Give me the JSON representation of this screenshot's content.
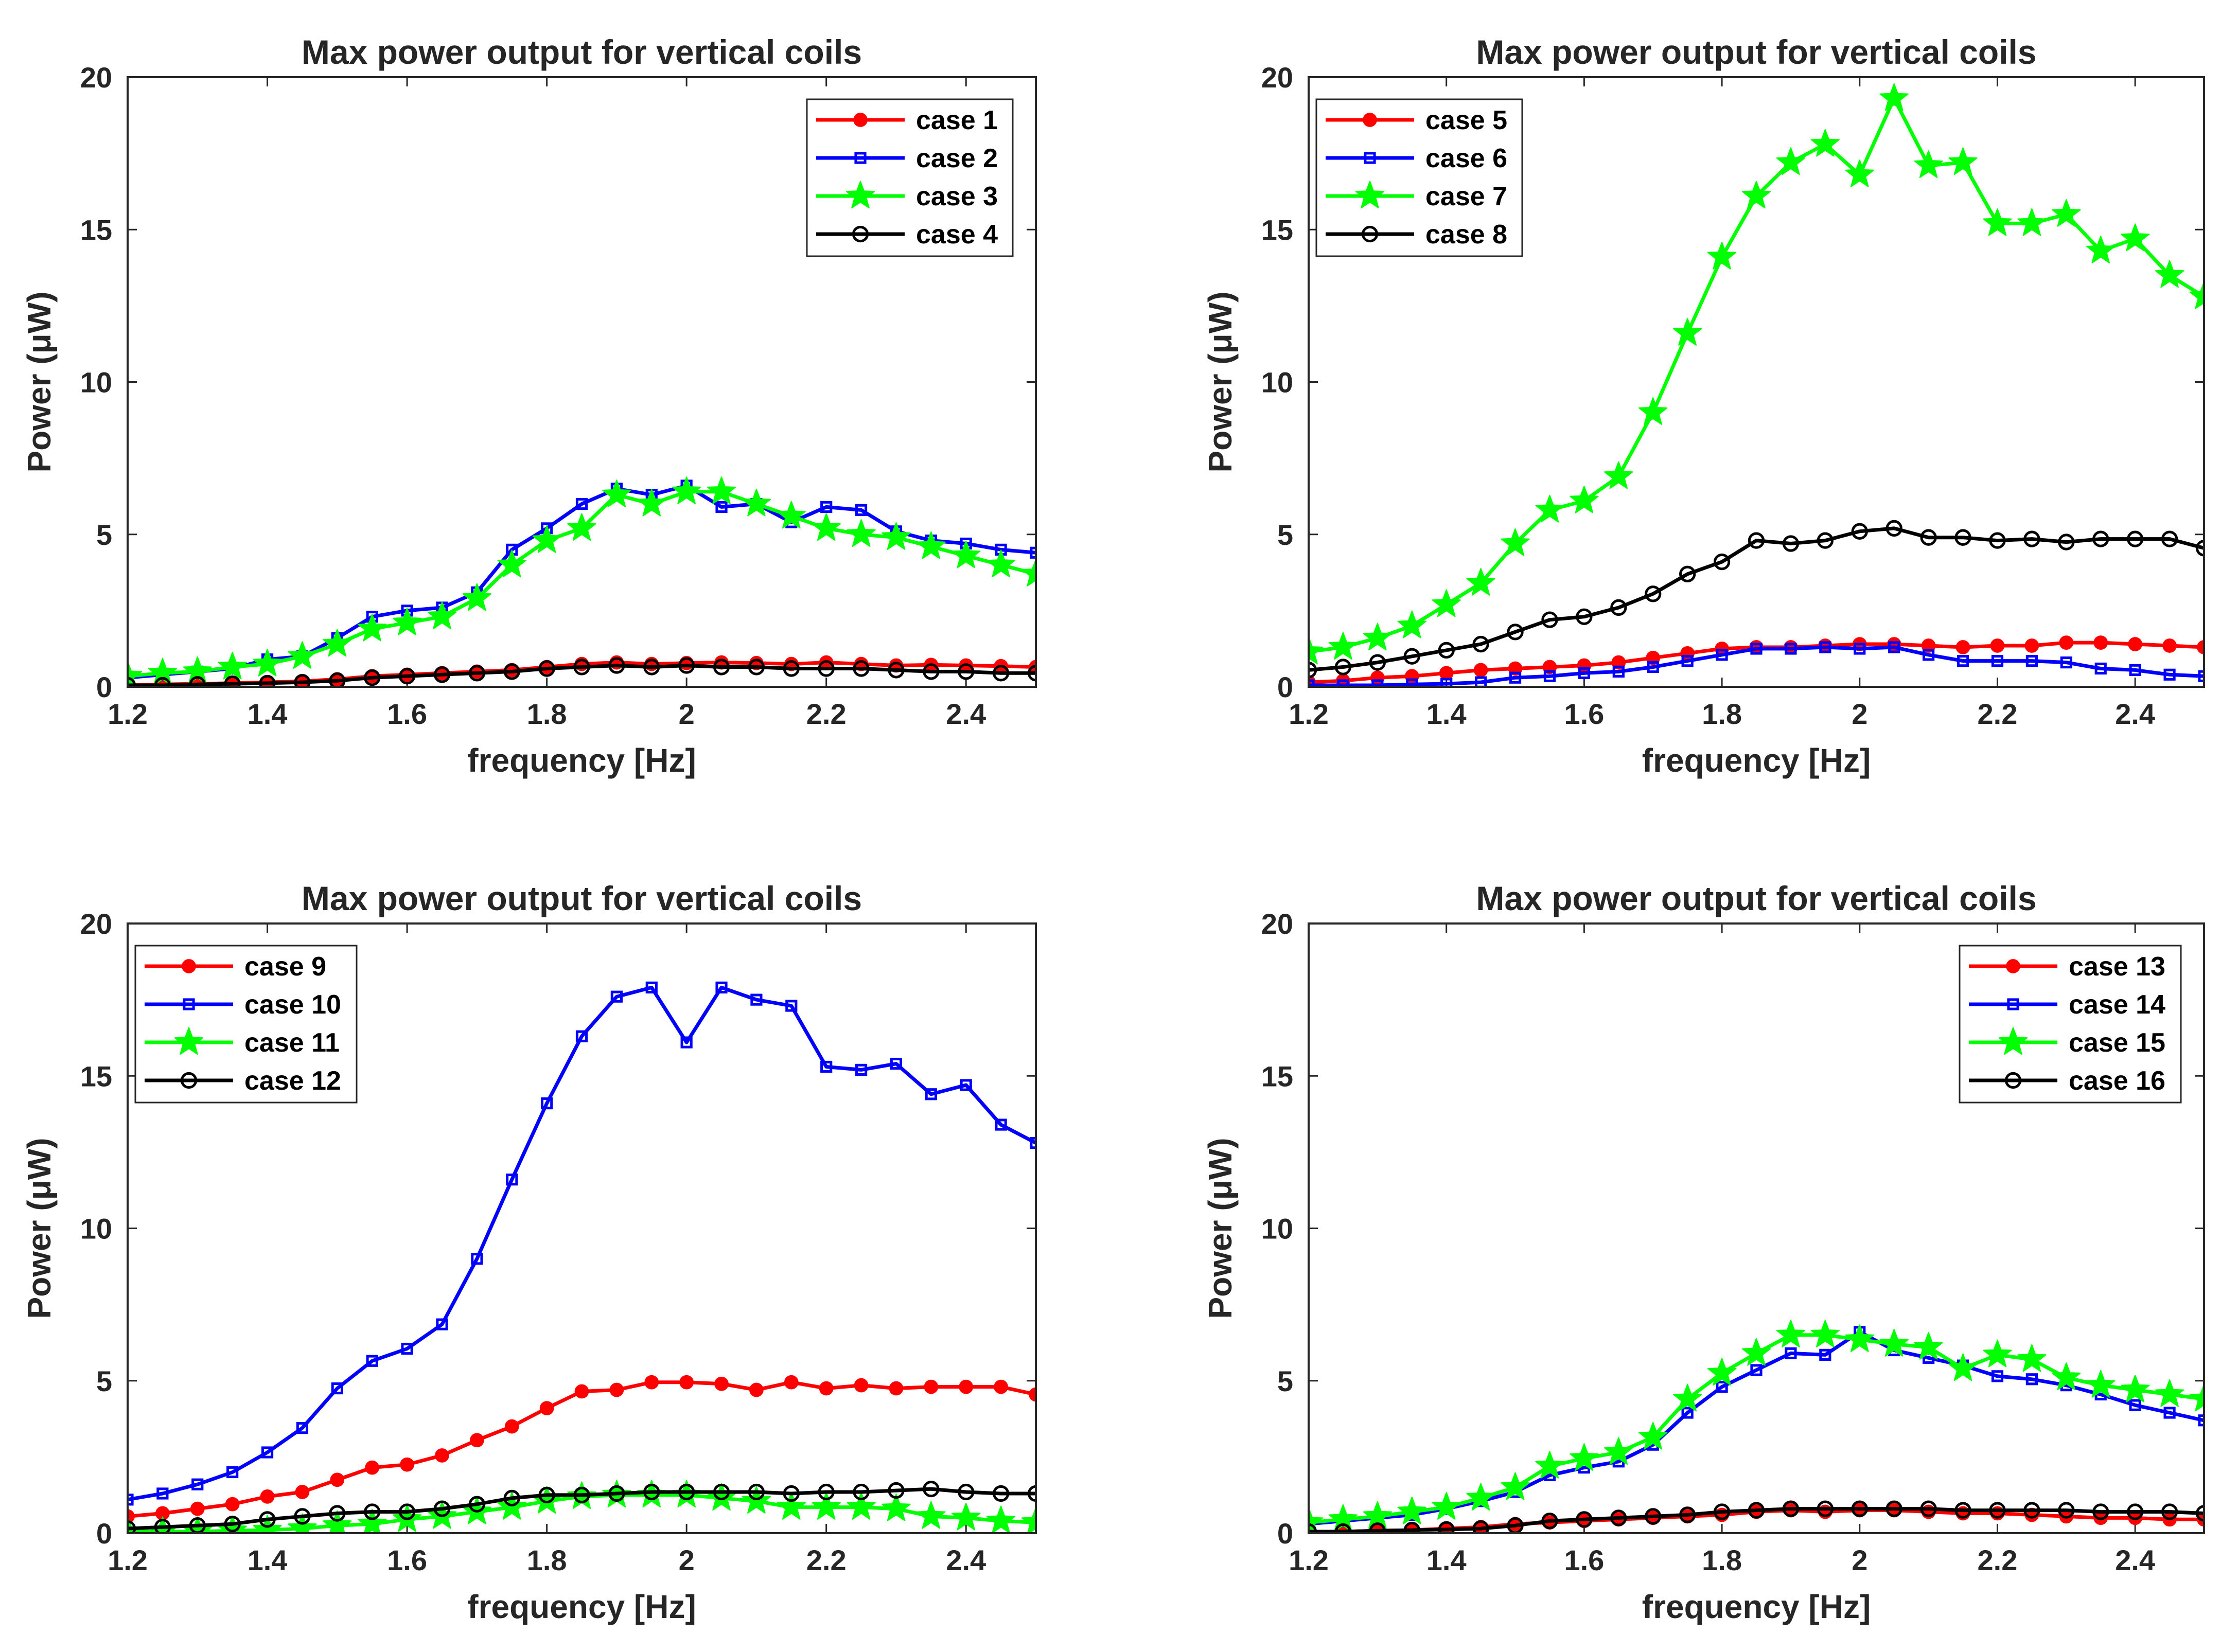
{
  "chart_data": [
    {
      "type": "line",
      "title": "Max power output for vertical coils",
      "xlabel": "frequency [Hz]",
      "ylabel": "Power (μW)",
      "xlim": [
        1.2,
        2.5
      ],
      "ylim": [
        0,
        20
      ],
      "xticks": [
        "1.2",
        "1.4",
        "1.6",
        "1.8",
        "2",
        "2.2",
        "2.4"
      ],
      "yticks": [
        "0",
        "5",
        "10",
        "15",
        "20"
      ],
      "legend_position": "top-right",
      "x": [
        1.2,
        1.25,
        1.3,
        1.35,
        1.4,
        1.45,
        1.5,
        1.55,
        1.6,
        1.65,
        1.7,
        1.75,
        1.8,
        1.85,
        1.9,
        1.95,
        2.0,
        2.05,
        2.1,
        2.15,
        2.2,
        2.25,
        2.3,
        2.35,
        2.4,
        2.45,
        2.5
      ],
      "series": [
        {
          "name": "case 1",
          "color": "#ff0000",
          "marker": "dot",
          "values": [
            0.05,
            0.08,
            0.1,
            0.12,
            0.15,
            0.18,
            0.25,
            0.35,
            0.4,
            0.45,
            0.5,
            0.55,
            0.65,
            0.75,
            0.8,
            0.75,
            0.78,
            0.8,
            0.78,
            0.75,
            0.8,
            0.75,
            0.7,
            0.72,
            0.7,
            0.68,
            0.65
          ]
        },
        {
          "name": "case 2",
          "color": "#0000ff",
          "marker": "square",
          "values": [
            0.3,
            0.4,
            0.5,
            0.6,
            0.9,
            1.0,
            1.6,
            2.3,
            2.5,
            2.6,
            3.1,
            4.5,
            5.2,
            6.0,
            6.5,
            6.3,
            6.6,
            5.9,
            6.0,
            5.4,
            5.9,
            5.8,
            5.1,
            4.8,
            4.7,
            4.5,
            4.4
          ]
        },
        {
          "name": "case 3",
          "color": "#00ff00",
          "marker": "star",
          "values": [
            0.35,
            0.45,
            0.5,
            0.65,
            0.75,
            1.0,
            1.4,
            1.9,
            2.1,
            2.3,
            2.9,
            4.0,
            4.8,
            5.2,
            6.3,
            6.0,
            6.4,
            6.4,
            6.0,
            5.6,
            5.2,
            5.0,
            4.9,
            4.6,
            4.3,
            4.0,
            3.7
          ]
        },
        {
          "name": "case 4",
          "color": "#000000",
          "marker": "circle",
          "values": [
            0.05,
            0.05,
            0.08,
            0.1,
            0.12,
            0.15,
            0.2,
            0.3,
            0.35,
            0.4,
            0.45,
            0.5,
            0.6,
            0.65,
            0.7,
            0.65,
            0.7,
            0.65,
            0.65,
            0.6,
            0.6,
            0.6,
            0.55,
            0.5,
            0.5,
            0.45,
            0.45
          ]
        }
      ]
    },
    {
      "type": "line",
      "title": "Max power output for vertical coils",
      "xlabel": "frequency [Hz]",
      "ylabel": "Power (μW)",
      "xlim": [
        1.2,
        2.5
      ],
      "ylim": [
        0,
        20
      ],
      "xticks": [
        "1.2",
        "1.4",
        "1.6",
        "1.8",
        "2",
        "2.2",
        "2.4"
      ],
      "yticks": [
        "0",
        "5",
        "10",
        "15",
        "20"
      ],
      "legend_position": "top-left",
      "x": [
        1.2,
        1.25,
        1.3,
        1.35,
        1.4,
        1.45,
        1.5,
        1.55,
        1.6,
        1.65,
        1.7,
        1.75,
        1.8,
        1.85,
        1.9,
        1.95,
        2.0,
        2.05,
        2.1,
        2.15,
        2.2,
        2.25,
        2.3,
        2.35,
        2.4,
        2.45,
        2.5
      ],
      "series": [
        {
          "name": "case 5",
          "color": "#ff0000",
          "marker": "dot",
          "values": [
            0.15,
            0.2,
            0.3,
            0.35,
            0.45,
            0.55,
            0.6,
            0.65,
            0.7,
            0.8,
            0.95,
            1.1,
            1.25,
            1.3,
            1.3,
            1.35,
            1.4,
            1.4,
            1.35,
            1.3,
            1.35,
            1.35,
            1.45,
            1.45,
            1.4,
            1.35,
            1.3
          ]
        },
        {
          "name": "case 6",
          "color": "#0000ff",
          "marker": "square",
          "values": [
            0.05,
            0.05,
            0.05,
            0.08,
            0.1,
            0.15,
            0.3,
            0.35,
            0.45,
            0.5,
            0.65,
            0.85,
            1.05,
            1.25,
            1.25,
            1.3,
            1.25,
            1.3,
            1.05,
            0.85,
            0.85,
            0.85,
            0.8,
            0.6,
            0.55,
            0.4,
            0.35
          ]
        },
        {
          "name": "case 7",
          "color": "#00ff00",
          "marker": "star",
          "values": [
            1.15,
            1.3,
            1.6,
            2.0,
            2.7,
            3.4,
            4.7,
            5.8,
            6.1,
            6.9,
            9.0,
            11.6,
            14.1,
            16.1,
            17.2,
            17.8,
            16.8,
            19.3,
            17.1,
            17.2,
            15.2,
            15.2,
            15.5,
            14.3,
            14.7,
            13.5,
            12.8
          ]
        },
        {
          "name": "case 8",
          "color": "#000000",
          "marker": "circle",
          "values": [
            0.55,
            0.65,
            0.8,
            1.0,
            1.2,
            1.4,
            1.8,
            2.2,
            2.3,
            2.6,
            3.05,
            3.7,
            4.1,
            4.8,
            4.7,
            4.8,
            5.1,
            5.2,
            4.9,
            4.9,
            4.8,
            4.85,
            4.75,
            4.85,
            4.85,
            4.85,
            4.55
          ]
        }
      ]
    },
    {
      "type": "line",
      "title": "Max power output for vertical coils",
      "xlabel": "frequency [Hz]",
      "ylabel": "Power (μW)",
      "xlim": [
        1.2,
        2.5
      ],
      "ylim": [
        0,
        20
      ],
      "xticks": [
        "1.2",
        "1.4",
        "1.6",
        "1.8",
        "2",
        "2.2",
        "2.4"
      ],
      "yticks": [
        "0",
        "5",
        "10",
        "15",
        "20"
      ],
      "legend_position": "top-left",
      "x": [
        1.2,
        1.25,
        1.3,
        1.35,
        1.4,
        1.45,
        1.5,
        1.55,
        1.6,
        1.65,
        1.7,
        1.75,
        1.8,
        1.85,
        1.9,
        1.95,
        2.0,
        2.05,
        2.1,
        2.15,
        2.2,
        2.25,
        2.3,
        2.35,
        2.4,
        2.45,
        2.5
      ],
      "series": [
        {
          "name": "case 9",
          "color": "#ff0000",
          "marker": "dot",
          "values": [
            0.55,
            0.65,
            0.8,
            0.95,
            1.2,
            1.35,
            1.75,
            2.15,
            2.25,
            2.55,
            3.05,
            3.5,
            4.1,
            4.65,
            4.7,
            4.95,
            4.95,
            4.9,
            4.7,
            4.95,
            4.75,
            4.85,
            4.75,
            4.8,
            4.8,
            4.8,
            4.55
          ]
        },
        {
          "name": "case 10",
          "color": "#0000ff",
          "marker": "square",
          "values": [
            1.1,
            1.3,
            1.6,
            2.0,
            2.65,
            3.45,
            4.75,
            5.65,
            6.05,
            6.85,
            9.0,
            11.6,
            14.1,
            16.3,
            17.6,
            17.9,
            16.1,
            17.9,
            17.5,
            17.3,
            15.3,
            15.2,
            15.4,
            14.4,
            14.7,
            13.4,
            12.8
          ]
        },
        {
          "name": "case 11",
          "color": "#00ff00",
          "marker": "star",
          "values": [
            0.05,
            0.05,
            0.05,
            0.08,
            0.1,
            0.15,
            0.25,
            0.3,
            0.45,
            0.55,
            0.7,
            0.85,
            1.05,
            1.2,
            1.25,
            1.25,
            1.25,
            1.15,
            1.05,
            0.85,
            0.85,
            0.85,
            0.8,
            0.55,
            0.5,
            0.4,
            0.35
          ]
        },
        {
          "name": "case 12",
          "color": "#000000",
          "marker": "circle",
          "values": [
            0.15,
            0.2,
            0.25,
            0.3,
            0.45,
            0.55,
            0.65,
            0.7,
            0.7,
            0.8,
            0.95,
            1.15,
            1.25,
            1.25,
            1.3,
            1.35,
            1.35,
            1.35,
            1.35,
            1.3,
            1.35,
            1.35,
            1.4,
            1.45,
            1.35,
            1.3,
            1.3
          ]
        }
      ]
    },
    {
      "type": "line",
      "title": "Max power output for vertical coils",
      "xlabel": "frequency [Hz]",
      "ylabel": "Power (μW)",
      "xlim": [
        1.2,
        2.5
      ],
      "ylim": [
        0,
        20
      ],
      "xticks": [
        "1.2",
        "1.4",
        "1.6",
        "1.8",
        "2",
        "2.2",
        "2.4"
      ],
      "yticks": [
        "0",
        "5",
        "10",
        "15",
        "20"
      ],
      "legend_position": "top-right",
      "x": [
        1.2,
        1.25,
        1.3,
        1.35,
        1.4,
        1.45,
        1.5,
        1.55,
        1.6,
        1.65,
        1.7,
        1.75,
        1.8,
        1.85,
        1.9,
        1.95,
        2.0,
        2.05,
        2.1,
        2.15,
        2.2,
        2.25,
        2.3,
        2.35,
        2.4,
        2.45,
        2.5
      ],
      "series": [
        {
          "name": "case 13",
          "color": "#ff0000",
          "marker": "dot",
          "values": [
            0.05,
            0.05,
            0.08,
            0.1,
            0.15,
            0.2,
            0.3,
            0.35,
            0.4,
            0.45,
            0.5,
            0.55,
            0.6,
            0.7,
            0.75,
            0.7,
            0.75,
            0.75,
            0.7,
            0.65,
            0.65,
            0.6,
            0.55,
            0.5,
            0.5,
            0.45,
            0.45
          ]
        },
        {
          "name": "case 14",
          "color": "#0000ff",
          "marker": "square",
          "values": [
            0.3,
            0.4,
            0.5,
            0.6,
            0.8,
            1.05,
            1.35,
            1.9,
            2.15,
            2.35,
            2.9,
            3.95,
            4.8,
            5.35,
            5.9,
            5.85,
            6.6,
            6.0,
            5.75,
            5.5,
            5.15,
            5.05,
            4.85,
            4.55,
            4.2,
            3.95,
            3.7
          ]
        },
        {
          "name": "case 15",
          "color": "#00ff00",
          "marker": "star",
          "values": [
            0.35,
            0.45,
            0.55,
            0.7,
            0.85,
            1.15,
            1.5,
            2.2,
            2.45,
            2.65,
            3.15,
            4.4,
            5.25,
            5.9,
            6.5,
            6.5,
            6.35,
            6.2,
            6.1,
            5.4,
            5.85,
            5.7,
            5.1,
            4.85,
            4.7,
            4.55,
            4.4
          ]
        },
        {
          "name": "case 16",
          "color": "#000000",
          "marker": "circle",
          "values": [
            0.05,
            0.05,
            0.08,
            0.1,
            0.12,
            0.15,
            0.25,
            0.4,
            0.45,
            0.5,
            0.55,
            0.6,
            0.7,
            0.75,
            0.8,
            0.8,
            0.8,
            0.8,
            0.8,
            0.75,
            0.75,
            0.75,
            0.75,
            0.7,
            0.7,
            0.7,
            0.65
          ]
        }
      ]
    }
  ]
}
